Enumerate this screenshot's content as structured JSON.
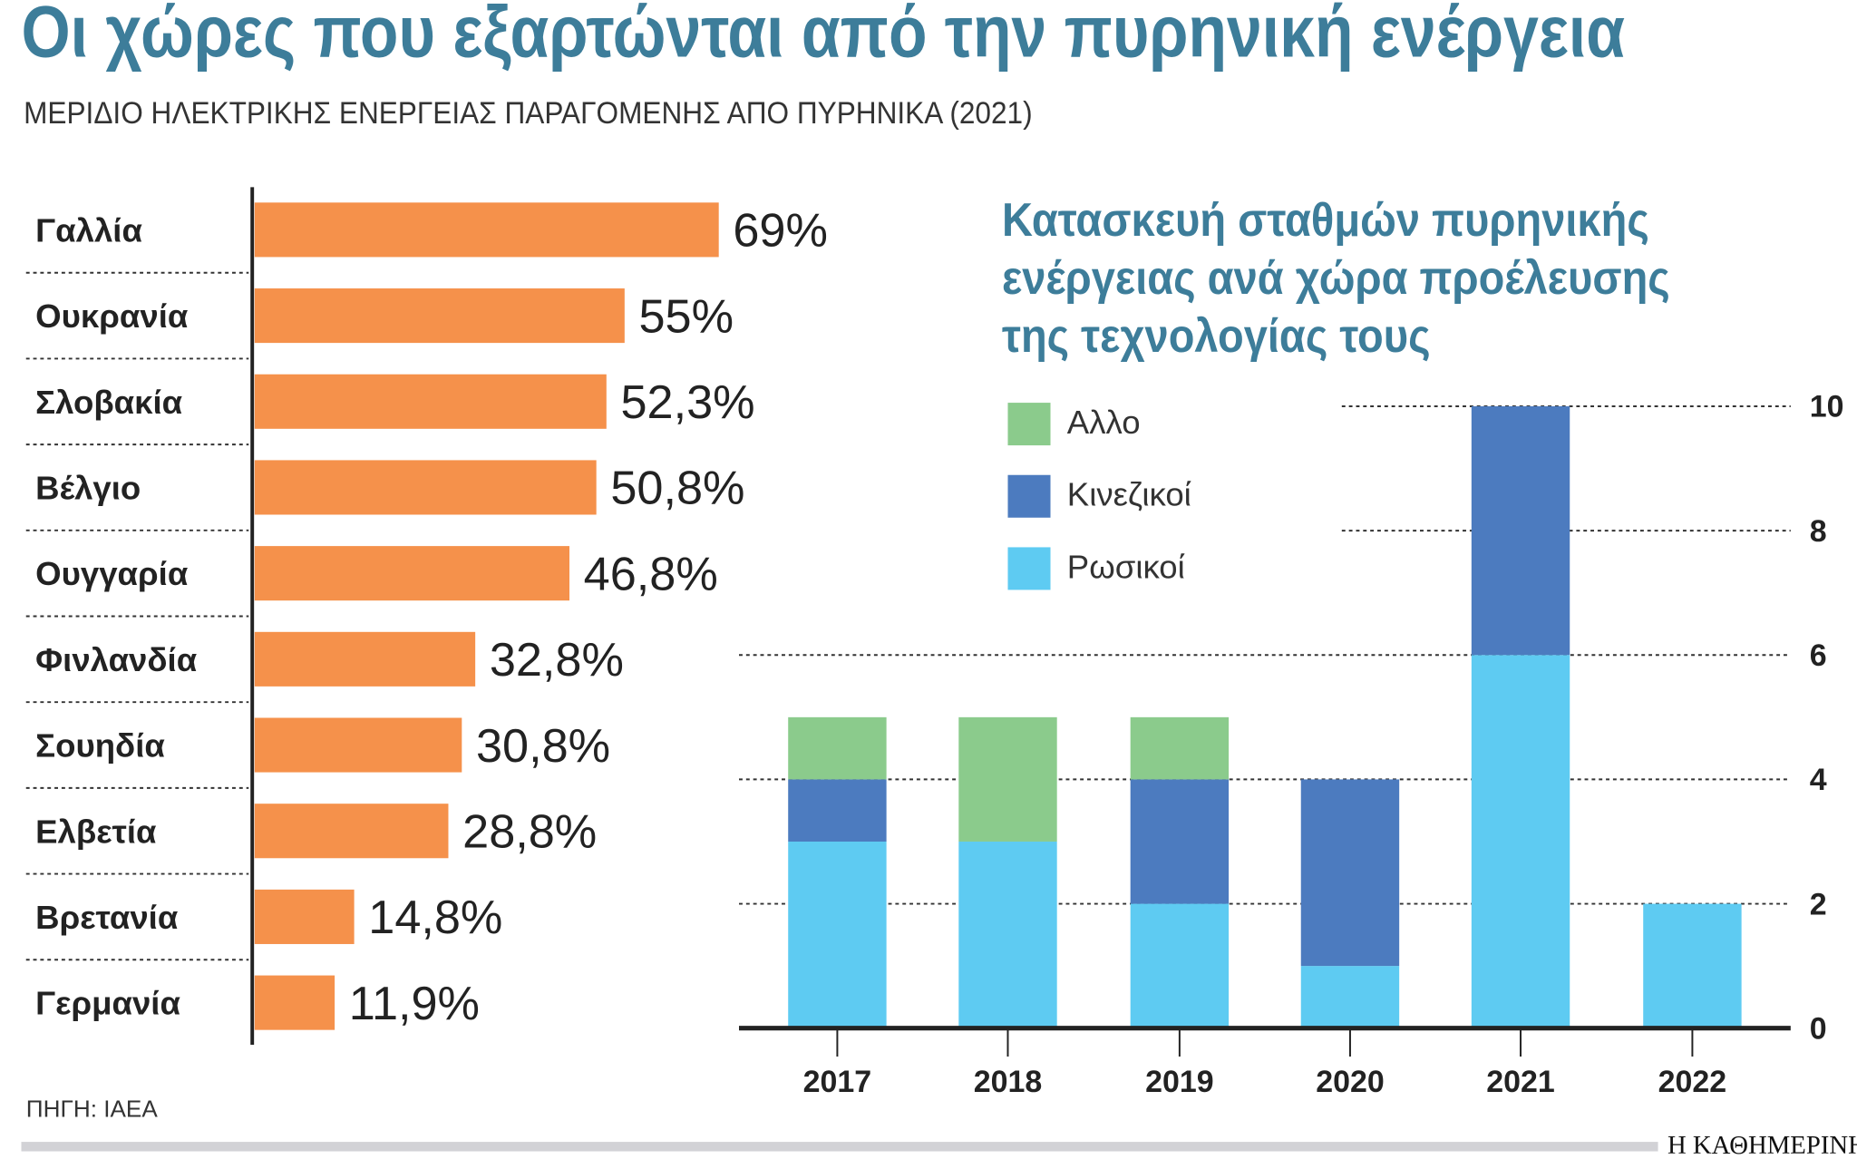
{
  "title": "Οι χώρες που εξαρτώνται από την πυρηνική ενέργεια",
  "subtitle": "ΜΕΡΙΔΙΟ ΗΛΕΚΤΡΙΚΗΣ ΕΝΕΡΓΕΙΑΣ ΠΑΡΑΓΟΜΕΝΗΣ ΑΠΟ ΠΥΡΗΝΙΚΑ (2021)",
  "source": "ΠΗΓΗ: IAEA",
  "brand": "Η ΚΑΘΗΜΕΡΙΝΗ",
  "chart_data": [
    {
      "type": "bar",
      "orientation": "horizontal",
      "categories": [
        "Γαλλία",
        "Ουκρανία",
        "Σλοβακία",
        "Βέλγιο",
        "Ουγγαρία",
        "Φινλανδία",
        "Σουηδία",
        "Ελβετία",
        "Βρετανία",
        "Γερμανία"
      ],
      "values": [
        69,
        55,
        52.3,
        50.8,
        46.8,
        32.8,
        30.8,
        28.8,
        14.8,
        11.9
      ],
      "labels": [
        "69%",
        "55%",
        "52,3%",
        "50,8%",
        "46,8%",
        "32,8%",
        "30,8%",
        "28,8%",
        "14,8%",
        "11,9%"
      ],
      "color": "#f5914b",
      "unit": "%"
    },
    {
      "type": "bar",
      "stacked": true,
      "title_lines": [
        "Κατασκευή σταθμών πυρηνικής",
        "ενέργειας ανά χώρα προέλευσης",
        "της τεχνολογίας τους"
      ],
      "categories": [
        "2017",
        "2018",
        "2019",
        "2020",
        "2021",
        "2022"
      ],
      "series": [
        {
          "name": "Ρωσικοί",
          "values": [
            3,
            3,
            2,
            1,
            6,
            2
          ],
          "color": "#5ecbf2"
        },
        {
          "name": "Κινεζικοί",
          "values": [
            1,
            0,
            2,
            3,
            4,
            0
          ],
          "color": "#4c7bbf"
        },
        {
          "name": "Αλλο",
          "values": [
            1,
            2,
            1,
            0,
            0,
            0
          ],
          "color": "#8bcb8c"
        }
      ],
      "legend_order": [
        "Αλλο",
        "Κινεζικοί",
        "Ρωσικοί"
      ],
      "legend_placement": "top-left",
      "ylim": [
        0,
        10
      ],
      "yticks": [
        "0",
        "2",
        "4",
        "6",
        "8",
        "10"
      ],
      "y_axis_side": "right",
      "grid": "dotted"
    }
  ]
}
